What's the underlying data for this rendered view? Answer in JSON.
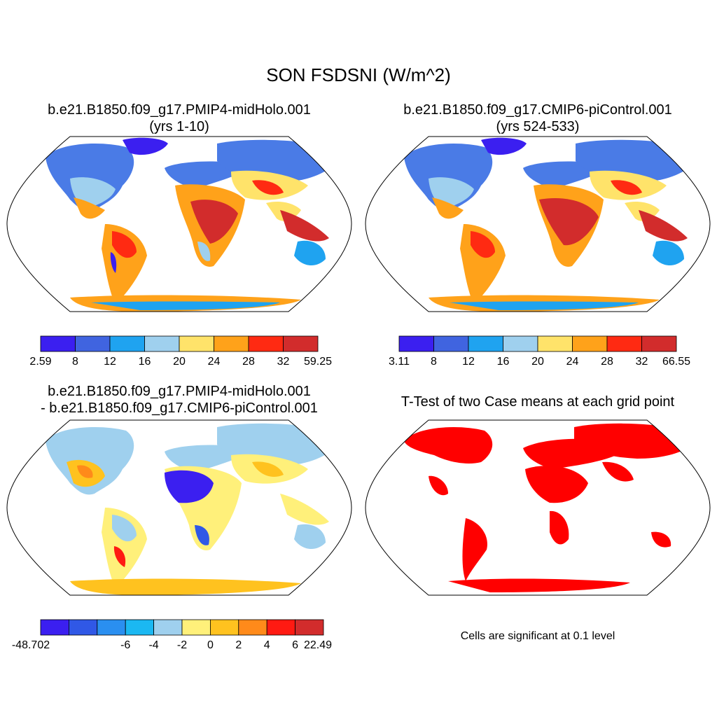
{
  "figure": {
    "title": "SON FSDSNI (W/m^2)"
  },
  "panels": [
    {
      "title_line1": "b.e21.B1850.f09_g17.PMIP4-midHolo.001",
      "title_line2": "(yrs 1-10)",
      "colorbar": {
        "colors": [
          "#3b1ff0",
          "#4064e0",
          "#1fa3f0",
          "#9fd0ee",
          "#ffe36a",
          "#ffa21a",
          "#ff2a12",
          "#d22c2c"
        ],
        "labels": [
          "2.59",
          "8",
          "12",
          "16",
          "20",
          "24",
          "28",
          "32",
          "59.25"
        ]
      }
    },
    {
      "title_line1": "b.e21.B1850.f09_g17.CMIP6-piControl.001",
      "title_line2": "(yrs 524-533)",
      "colorbar": {
        "colors": [
          "#3b1ff0",
          "#4064e0",
          "#1fa3f0",
          "#9fd0ee",
          "#ffe36a",
          "#ffa21a",
          "#ff2a12",
          "#d22c2c"
        ],
        "labels": [
          "3.11",
          "8",
          "12",
          "16",
          "20",
          "24",
          "28",
          "32",
          "66.55"
        ]
      }
    },
    {
      "title_line1": "b.e21.B1850.f09_g17.PMIP4-midHolo.001",
      "title_line2": "- b.e21.B1850.f09_g17.CMIP6-piControl.001",
      "colorbar": {
        "colors": [
          "#3b1ff0",
          "#3058e6",
          "#2a8ff0",
          "#1bb8f2",
          "#9fd0ee",
          "#fff07a",
          "#ffc21f",
          "#ff8a1a",
          "#ff1a12",
          "#d22c2c"
        ],
        "labels": [
          "-48.702",
          "-6",
          "-4",
          "-2",
          "0",
          "2",
          "4",
          "6",
          "22.49"
        ]
      }
    },
    {
      "title_line1": "T-Test of two Case means at each grid point",
      "note": "Cells are significant at 0.1 level",
      "significant_color": "#ff0000"
    }
  ]
}
